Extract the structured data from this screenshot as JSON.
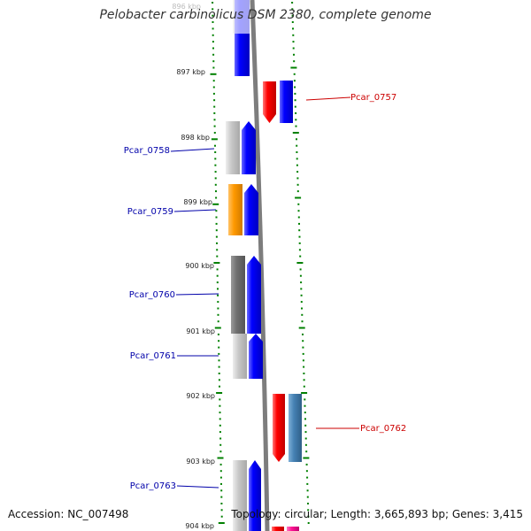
{
  "title": "Pelobacter carbinolicus DSM 2380, complete genome",
  "footer": {
    "accession": "Accession: NC_007498",
    "topology": "Topology: circular",
    "length": "Length: 3,665,893 bp",
    "genes": "Genes: 3,415"
  },
  "kbp_ticks": [
    "896 kbp",
    "897 kbp",
    "898 kbp",
    "899 kbp",
    "900 kbp",
    "901 kbp",
    "902 kbp",
    "903 kbp",
    "904 kbp"
  ],
  "gene_labels": [
    {
      "name": "Pcar_0757",
      "color": "#cc0000"
    },
    {
      "name": "Pcar_0758",
      "color": "#0000aa"
    },
    {
      "name": "Pcar_0759",
      "color": "#0000aa"
    },
    {
      "name": "Pcar_0760",
      "color": "#0000aa"
    },
    {
      "name": "Pcar_0761",
      "color": "#0000aa"
    },
    {
      "name": "Pcar_0762",
      "color": "#cc0000"
    },
    {
      "name": "Pcar_0763",
      "color": "#0000aa"
    }
  ],
  "colors": {
    "backbone": "#888888",
    "tick": "#008000",
    "cds": "#0000ff",
    "cds_reverse": "#ff0000",
    "cog_gray_light": "#c8c8c8",
    "cog_gray_dark": "#707070",
    "cog_orange": "#ff9900",
    "cog_steelblue": "#4682b4",
    "cog_pink": "#ff1493"
  }
}
